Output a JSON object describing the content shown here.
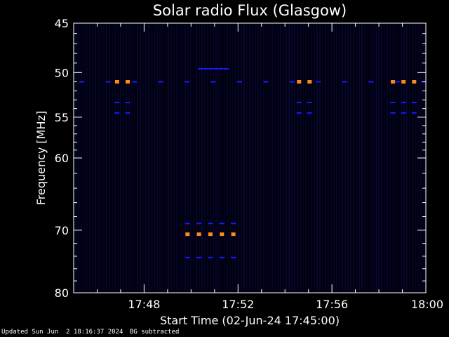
{
  "chart_data": {
    "type": "heatmap",
    "title": "Solar radio Flux (Glasgow)",
    "xlabel": "Start Time (02-Jun-24 17:45:00)",
    "ylabel": "Frequency [MHz]",
    "x_range_minutes": [
      17.75,
      18.0
    ],
    "xlim_minutes_from_start": [
      0,
      15
    ],
    "x_ticks": [
      {
        "label": "17:48",
        "minutes_from_start": 3
      },
      {
        "label": "17:52",
        "minutes_from_start": 7
      },
      {
        "label": "17:56",
        "minutes_from_start": 11
      },
      {
        "label": "18:00",
        "minutes_from_start": 15
      }
    ],
    "y_ticks": [
      45,
      50,
      55,
      60,
      70,
      80
    ],
    "ylim": [
      45,
      80
    ],
    "y_scale": "log",
    "y_direction": "top-to-bottom",
    "background_color": "#000010",
    "colors": {
      "axes": "#ffffff",
      "low": "#0a0a3c",
      "medium": "#1a1aff",
      "high": "#ff8a1a"
    },
    "features": [
      {
        "kind": "bright",
        "frequency": 51,
        "minutes_from_start": [
          1.85,
          2.3
        ],
        "count": 2
      },
      {
        "kind": "bright",
        "frequency": 51,
        "minutes_from_start": [
          9.6,
          10.05
        ],
        "count": 2
      },
      {
        "kind": "bright",
        "frequency": 51,
        "minutes_from_start": [
          13.6,
          14.5
        ],
        "count": 3
      },
      {
        "kind": "bright",
        "frequency": 70.6,
        "minutes_from_start": [
          4.85,
          6.8
        ],
        "count": 5
      },
      {
        "kind": "medium",
        "frequency": 53.3,
        "minutes_from_start": [
          1.85,
          2.3
        ],
        "count": 2
      },
      {
        "kind": "medium",
        "frequency": 54.5,
        "minutes_from_start": [
          1.85,
          2.3
        ],
        "count": 2
      },
      {
        "kind": "medium",
        "frequency": 53.3,
        "minutes_from_start": [
          9.6,
          10.05
        ],
        "count": 2
      },
      {
        "kind": "medium",
        "frequency": 54.5,
        "minutes_from_start": [
          9.6,
          10.05
        ],
        "count": 2
      },
      {
        "kind": "medium",
        "frequency": 53.3,
        "minutes_from_start": [
          13.6,
          14.5
        ],
        "count": 3
      },
      {
        "kind": "medium",
        "frequency": 54.5,
        "minutes_from_start": [
          13.6,
          14.5
        ],
        "count": 3
      },
      {
        "kind": "medium",
        "frequency": 69,
        "minutes_from_start": [
          4.85,
          6.8
        ],
        "count": 5
      },
      {
        "kind": "medium",
        "frequency": 74.2,
        "minutes_from_start": [
          4.85,
          6.8
        ],
        "count": 5
      },
      {
        "kind": "medium",
        "frequency": 49.6,
        "minutes_from_start": [
          5.4,
          6.5
        ],
        "count": 6
      },
      {
        "kind": "medium",
        "frequency": 51,
        "minutes_from_start": [
          0.35,
          14.9
        ],
        "count": 14
      }
    ]
  },
  "footer": {
    "updated": "Updated Sun Jun  2 18:16:37 2024",
    "bg": "BG subtracted"
  }
}
